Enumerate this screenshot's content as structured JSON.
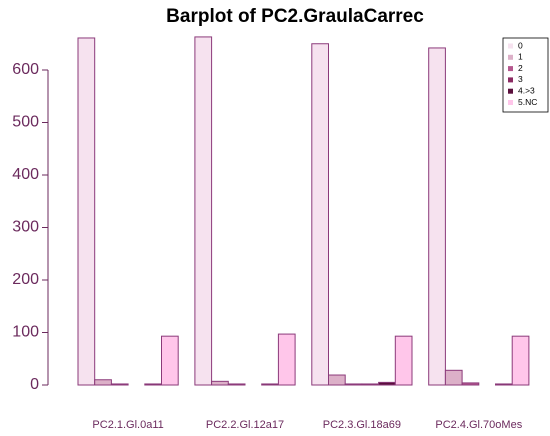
{
  "chart_data": {
    "type": "bar",
    "title": "Barplot of PC2.GraulaCarrec",
    "categories": [
      "PC2.1.Gl.0a11",
      "PC2.2.Gl.12a17",
      "PC2.3.Gl.18a69",
      "PC2.4.Gl.70oMes"
    ],
    "series": [
      {
        "name": "0",
        "color": "#f6e2ef",
        "values": [
          661,
          663,
          650,
          642
        ]
      },
      {
        "name": "1",
        "color": "#dcb0c8",
        "values": [
          10,
          7,
          19,
          28
        ]
      },
      {
        "name": "2",
        "color": "#b5578e",
        "values": [
          2,
          2,
          2,
          4
        ]
      },
      {
        "name": "3",
        "color": "#8b2a62",
        "values": [
          0,
          0,
          2,
          0
        ]
      },
      {
        "name": "4.>3",
        "color": "#5a0f3c",
        "values": [
          2,
          2,
          5,
          2
        ]
      },
      {
        "name": "5.NC",
        "color": "#ffc6ea",
        "values": [
          93,
          97,
          93,
          93
        ]
      }
    ],
    "ylim": [
      0,
      680
    ],
    "yticks": [
      0,
      100,
      200,
      300,
      400,
      500,
      600
    ],
    "legend": "top-right"
  }
}
